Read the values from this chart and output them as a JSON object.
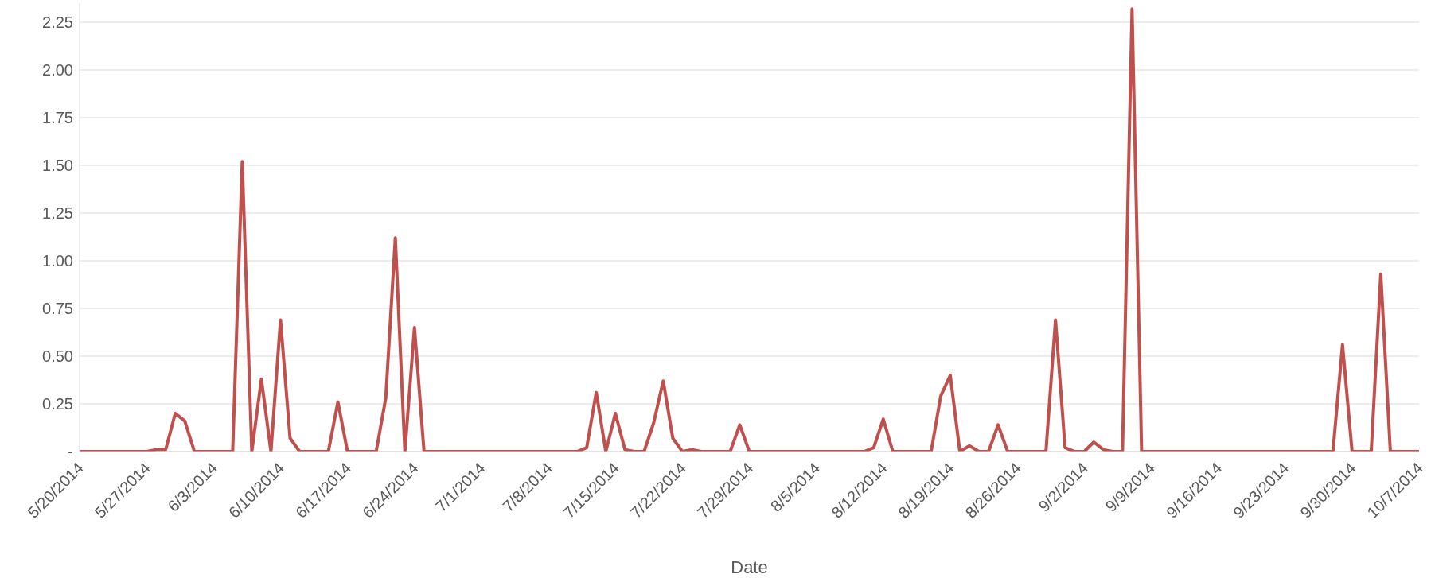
{
  "chart_data": {
    "type": "line",
    "xlabel": "Date",
    "grid": "y",
    "line_style": "solid",
    "marker": "none",
    "xlim": [
      "2014-05-20",
      "2014-10-07"
    ],
    "xticks": [
      {
        "value": "2014-05-20",
        "label": "5/20/2014"
      },
      {
        "value": "2014-05-27",
        "label": "5/27/2014"
      },
      {
        "value": "2014-06-03",
        "label": "6/3/2014"
      },
      {
        "value": "2014-06-10",
        "label": "6/10/2014"
      },
      {
        "value": "2014-06-17",
        "label": "6/17/2014"
      },
      {
        "value": "2014-06-24",
        "label": "6/24/2014"
      },
      {
        "value": "2014-07-01",
        "label": "7/1/2014"
      },
      {
        "value": "2014-07-08",
        "label": "7/8/2014"
      },
      {
        "value": "2014-07-15",
        "label": "7/15/2014"
      },
      {
        "value": "2014-07-22",
        "label": "7/22/2014"
      },
      {
        "value": "2014-07-29",
        "label": "7/29/2014"
      },
      {
        "value": "2014-08-05",
        "label": "8/5/2014"
      },
      {
        "value": "2014-08-12",
        "label": "8/12/2014"
      },
      {
        "value": "2014-08-19",
        "label": "8/19/2014"
      },
      {
        "value": "2014-08-26",
        "label": "8/26/2014"
      },
      {
        "value": "2014-09-02",
        "label": "9/2/2014"
      },
      {
        "value": "2014-09-09",
        "label": "9/9/2014"
      },
      {
        "value": "2014-09-16",
        "label": "9/16/2014"
      },
      {
        "value": "2014-09-23",
        "label": "9/23/2014"
      },
      {
        "value": "2014-09-30",
        "label": "9/30/2014"
      },
      {
        "value": "2014-10-07",
        "label": "10/7/2014"
      }
    ],
    "ylim": [
      0,
      2.35
    ],
    "yticks": [
      {
        "value": 0,
        "label": "-"
      },
      {
        "value": 0.25,
        "label": "0.25"
      },
      {
        "value": 0.5,
        "label": "0.50"
      },
      {
        "value": 0.75,
        "label": "0.75"
      },
      {
        "value": 1,
        "label": "1.00"
      },
      {
        "value": 1.25,
        "label": "1.25"
      },
      {
        "value": 1.5,
        "label": "1.50"
      },
      {
        "value": 1.75,
        "label": "1.75"
      },
      {
        "value": 2,
        "label": "2.00"
      },
      {
        "value": 2.25,
        "label": "2.25"
      }
    ],
    "series": [
      {
        "color": "#c0504d",
        "x": [
          "2014-05-20",
          "2014-05-27",
          "2014-05-28",
          "2014-05-29",
          "2014-05-30",
          "2014-05-31",
          "2014-06-01",
          "2014-06-05",
          "2014-06-06",
          "2014-06-07",
          "2014-06-08",
          "2014-06-09",
          "2014-06-10",
          "2014-06-11",
          "2014-06-12",
          "2014-06-15",
          "2014-06-16",
          "2014-06-17",
          "2014-06-20",
          "2014-06-21",
          "2014-06-22",
          "2014-06-23",
          "2014-06-24",
          "2014-06-25",
          "2014-07-11",
          "2014-07-12",
          "2014-07-13",
          "2014-07-14",
          "2014-07-15",
          "2014-07-16",
          "2014-07-17",
          "2014-07-18",
          "2014-07-19",
          "2014-07-20",
          "2014-07-21",
          "2014-07-22",
          "2014-07-23",
          "2014-07-24",
          "2014-07-27",
          "2014-07-28",
          "2014-07-29",
          "2014-08-10",
          "2014-08-11",
          "2014-08-12",
          "2014-08-13",
          "2014-08-17",
          "2014-08-18",
          "2014-08-19",
          "2014-08-20",
          "2014-08-21",
          "2014-08-22",
          "2014-08-23",
          "2014-08-24",
          "2014-08-25",
          "2014-08-29",
          "2014-08-30",
          "2014-08-31",
          "2014-09-01",
          "2014-09-02",
          "2014-09-03",
          "2014-09-04",
          "2014-09-05",
          "2014-09-06",
          "2014-09-07",
          "2014-09-08",
          "2014-09-28",
          "2014-09-29",
          "2014-09-30",
          "2014-10-02",
          "2014-10-03",
          "2014-10-04",
          "2014-10-07"
        ],
        "values": [
          0,
          0,
          0.01,
          0.01,
          0.2,
          0.16,
          0,
          0,
          1.52,
          0,
          0.38,
          0,
          0.69,
          0.07,
          0,
          0,
          0.26,
          0,
          0,
          0.28,
          1.12,
          0,
          0.65,
          0,
          0,
          0.02,
          0.31,
          0,
          0.2,
          0.01,
          0,
          0,
          0.15,
          0.37,
          0.07,
          0,
          0.01,
          0,
          0,
          0.14,
          0,
          0,
          0.02,
          0.17,
          0,
          0,
          0.29,
          0.4,
          0,
          0.03,
          0,
          0,
          0.14,
          0,
          0,
          0.69,
          0.02,
          0,
          0,
          0.05,
          0.01,
          0,
          0,
          2.32,
          0,
          0,
          0.56,
          0,
          0,
          0.93,
          0,
          0
        ]
      }
    ]
  }
}
